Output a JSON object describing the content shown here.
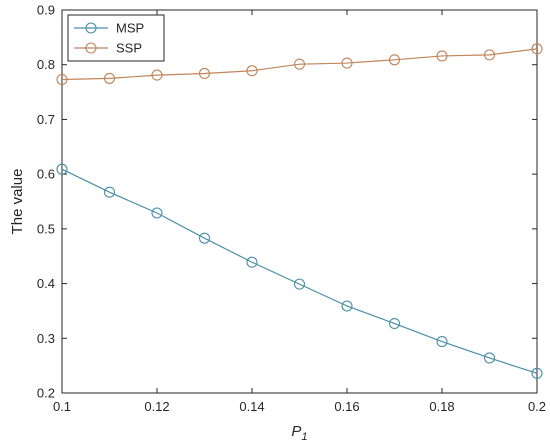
{
  "chart_data": {
    "type": "line",
    "xlabel": "P",
    "xlabel_sub": "1",
    "ylabel": "The value",
    "xlim": [
      0.1,
      0.2
    ],
    "ylim": [
      0.2,
      0.9
    ],
    "xticks": [
      0.1,
      0.12,
      0.14,
      0.16,
      0.18,
      0.2
    ],
    "xtick_labels": [
      "0.1",
      "0.12",
      "0.14",
      "0.16",
      "0.18",
      "0.2"
    ],
    "yticks": [
      0.2,
      0.3,
      0.4,
      0.5,
      0.6,
      0.7,
      0.8,
      0.9
    ],
    "ytick_labels": [
      "0.2",
      "0.3",
      "0.4",
      "0.5",
      "0.6",
      "0.7",
      "0.8",
      "0.9"
    ],
    "grid": false,
    "legend_position": "top-left",
    "marker": "circle",
    "x": [
      0.1,
      0.11,
      0.12,
      0.13,
      0.14,
      0.15,
      0.16,
      0.17,
      0.18,
      0.19,
      0.2
    ],
    "series": [
      {
        "name": "MSP",
        "color": "#4a8fa6",
        "values": [
          0.609,
          0.567,
          0.529,
          0.483,
          0.439,
          0.399,
          0.359,
          0.327,
          0.294,
          0.264,
          0.236
        ]
      },
      {
        "name": "SSP",
        "color": "#c0855a",
        "values": [
          0.773,
          0.775,
          0.781,
          0.784,
          0.789,
          0.801,
          0.803,
          0.809,
          0.816,
          0.818,
          0.829
        ]
      }
    ]
  }
}
